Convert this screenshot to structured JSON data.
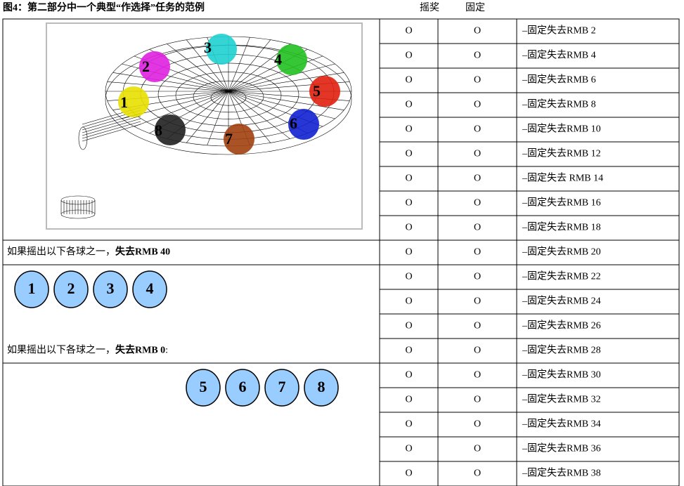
{
  "header": {
    "title": "图4：第二部分中一个典型“作选择”任务的范例",
    "col_lottery": "摇奖",
    "col_fixed": "固定"
  },
  "figure": {
    "balls": [
      {
        "label": "1",
        "color": "#e8e000"
      },
      {
        "label": "2",
        "color": "#e020e0"
      },
      {
        "label": "3",
        "color": "#20d0d0"
      },
      {
        "label": "4",
        "color": "#20c020"
      },
      {
        "label": "5",
        "color": "#e02010"
      },
      {
        "label": "6",
        "color": "#1020d0"
      },
      {
        "label": "7",
        "color": "#a04010"
      },
      {
        "label": "8",
        "color": "#202020"
      }
    ]
  },
  "rows": [
    {
      "lottery": "O",
      "fixed": "O",
      "option": "–固定失去RMB 2"
    },
    {
      "lottery": "O",
      "fixed": "O",
      "option": "–固定失去RMB 4"
    },
    {
      "lottery": "O",
      "fixed": "O",
      "option": "–固定失去RMB 6"
    },
    {
      "lottery": "O",
      "fixed": "O",
      "option": "–固定失去RMB 8"
    },
    {
      "lottery": "O",
      "fixed": "O",
      "option": "–固定失去RMB 10"
    },
    {
      "lottery": "O",
      "fixed": "O",
      "option": "–固定失去RMB 12"
    },
    {
      "lottery": "O",
      "fixed": "O",
      "option": "–固定失去 RMB 14"
    },
    {
      "lottery": "O",
      "fixed": "O",
      "option": "–固定失去RMB 16"
    },
    {
      "lottery": "O",
      "fixed": "O",
      "option": "–固定失去RMB 18"
    },
    {
      "lottery": "O",
      "fixed": "O",
      "option": "–固定失去RMB 20"
    },
    {
      "lottery": "O",
      "fixed": "O",
      "option": "–固定失去RMB 22"
    },
    {
      "lottery": "O",
      "fixed": "O",
      "option": "–固定失去RMB 24"
    },
    {
      "lottery": "O",
      "fixed": "O",
      "option": "–固定失去RMB 26"
    },
    {
      "lottery": "O",
      "fixed": "O",
      "option": "–固定失去RMB 28"
    },
    {
      "lottery": "O",
      "fixed": "O",
      "option": "–固定失去RMB 30"
    },
    {
      "lottery": "O",
      "fixed": "O",
      "option": "–固定失去RMB 32"
    },
    {
      "lottery": "O",
      "fixed": "O",
      "option": "–固定失去RMB 34"
    },
    {
      "lottery": "O",
      "fixed": "O",
      "option": "–固定失去RMB 36"
    },
    {
      "lottery": "O",
      "fixed": "O",
      "option": "–固定失去RMB 38"
    }
  ],
  "lose40": {
    "text": "如果摇出以下各球之一，",
    "bold": "失去RMB 40",
    "balls": [
      "1",
      "2",
      "3",
      "4"
    ]
  },
  "lose0": {
    "text": "如果摇出以下各球之一，",
    "bold": "失去RMB 0",
    "suffix": ":",
    "balls": [
      "5",
      "6",
      "7",
      "8"
    ]
  }
}
